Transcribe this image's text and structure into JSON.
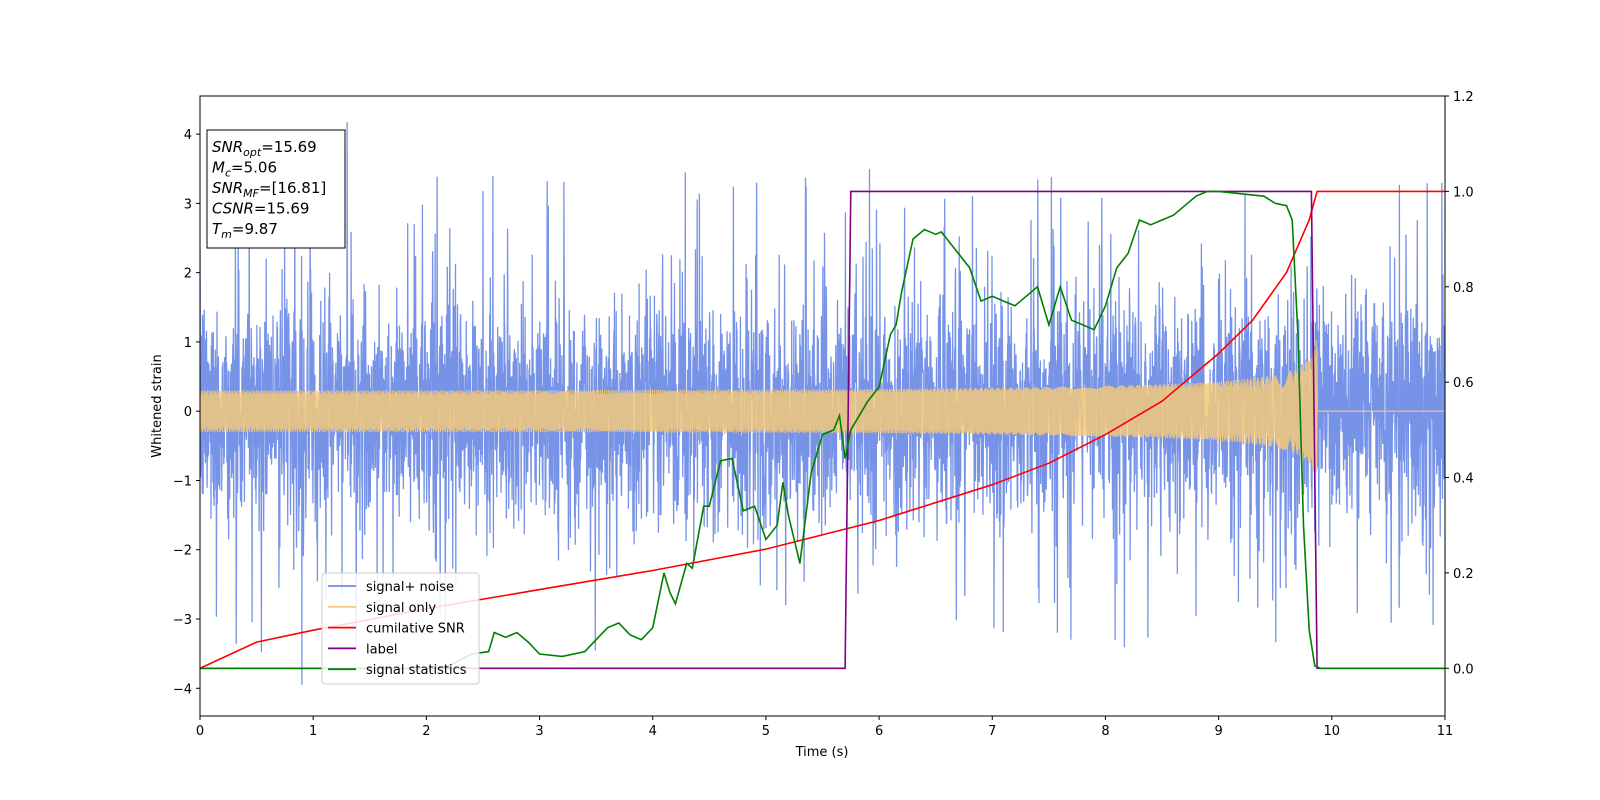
{
  "chart_data": {
    "type": "line",
    "xlabel": "Time (s)",
    "ylabel": "Whitened strain",
    "xlim": [
      0,
      11
    ],
    "ylim": [
      -4.4,
      4.55
    ],
    "y2lim": [
      -0.1,
      1.2
    ],
    "xticks": [
      0,
      1,
      2,
      3,
      4,
      5,
      6,
      7,
      8,
      9,
      10,
      11
    ],
    "yticks": [
      -4,
      -3,
      -2,
      -1,
      0,
      1,
      2,
      3,
      4
    ],
    "y2ticks": [
      "0.0",
      "0.2",
      "0.4",
      "0.6",
      "0.8",
      "1.0",
      "1.2"
    ],
    "grid": false,
    "legend_placement": "lower-left",
    "annotation": {
      "lines": [
        {
          "symbol": "SNR",
          "sub": "opt",
          "value": "=15.69"
        },
        {
          "symbol": "M",
          "sub": "c",
          "value": "=5.06"
        },
        {
          "symbol": "SNR",
          "sub": "MF",
          "value": "=[16.81]"
        },
        {
          "symbol": "CSNR",
          "sub": "",
          "value": "=15.69"
        },
        {
          "symbol": "T",
          "sub": "m",
          "value": "=9.87"
        }
      ]
    },
    "series": [
      {
        "name": "signal+ noise",
        "color": "#6f8de6",
        "axis": "left",
        "kind": "noise",
        "std": 0.85,
        "spike_max": 4.17,
        "spike_min": -3.95,
        "end_x": 11
      },
      {
        "name": "signal only",
        "color": "#f5c97a",
        "axis": "left",
        "kind": "chirp",
        "amplitude_start": 0.07,
        "amplitude_end": 1.1,
        "merger_x": 9.87
      },
      {
        "name": "cumilative SNR",
        "color": "#ff0000",
        "axis": "right",
        "x": [
          0,
          0.5,
          1,
          2,
          3,
          4,
          5,
          6,
          7,
          7.5,
          8,
          8.5,
          9,
          9.3,
          9.6,
          9.8,
          9.87,
          11
        ],
        "y": [
          0.0,
          0.055,
          0.08,
          0.125,
          0.165,
          0.205,
          0.25,
          0.31,
          0.385,
          0.43,
          0.49,
          0.56,
          0.66,
          0.73,
          0.83,
          0.94,
          1.0,
          1.0
        ]
      },
      {
        "name": "label",
        "color": "#800080",
        "axis": "right",
        "x": [
          0,
          5.7,
          5.75,
          9.82,
          9.87,
          11
        ],
        "y": [
          0,
          0,
          1,
          1,
          0,
          0
        ]
      },
      {
        "name": "signal statistics",
        "color": "#008000",
        "axis": "right",
        "x": [
          0,
          2.0,
          2.2,
          2.4,
          2.55,
          2.6,
          2.7,
          2.8,
          2.9,
          3.0,
          3.2,
          3.4,
          3.5,
          3.6,
          3.7,
          3.8,
          3.9,
          4.0,
          4.1,
          4.15,
          4.2,
          4.3,
          4.35,
          4.45,
          4.5,
          4.6,
          4.7,
          4.8,
          4.9,
          5.0,
          5.1,
          5.15,
          5.2,
          5.3,
          5.4,
          5.5,
          5.6,
          5.65,
          5.7,
          5.75,
          5.8,
          5.9,
          6.0,
          6.1,
          6.15,
          6.2,
          6.3,
          6.4,
          6.5,
          6.55,
          6.7,
          6.8,
          6.9,
          7.0,
          7.1,
          7.2,
          7.3,
          7.4,
          7.5,
          7.6,
          7.7,
          7.8,
          7.9,
          8.0,
          8.1,
          8.2,
          8.3,
          8.4,
          8.5,
          8.6,
          8.7,
          8.8,
          8.9,
          9.0,
          9.2,
          9.4,
          9.5,
          9.6,
          9.65,
          9.7,
          9.75,
          9.8,
          9.85,
          9.9,
          10.0,
          11
        ],
        "y": [
          0.0,
          0.0,
          0.005,
          0.03,
          0.035,
          0.075,
          0.065,
          0.075,
          0.055,
          0.03,
          0.025,
          0.035,
          0.06,
          0.085,
          0.095,
          0.07,
          0.06,
          0.085,
          0.2,
          0.16,
          0.135,
          0.22,
          0.21,
          0.34,
          0.34,
          0.435,
          0.44,
          0.33,
          0.34,
          0.27,
          0.3,
          0.39,
          0.32,
          0.22,
          0.41,
          0.49,
          0.5,
          0.53,
          0.44,
          0.5,
          0.52,
          0.56,
          0.59,
          0.7,
          0.72,
          0.79,
          0.9,
          0.92,
          0.91,
          0.915,
          0.87,
          0.84,
          0.77,
          0.78,
          0.77,
          0.76,
          0.78,
          0.8,
          0.72,
          0.8,
          0.73,
          0.72,
          0.71,
          0.76,
          0.84,
          0.87,
          0.94,
          0.93,
          0.94,
          0.95,
          0.97,
          0.99,
          1.0,
          1.0,
          0.995,
          0.99,
          0.975,
          0.97,
          0.94,
          0.7,
          0.3,
          0.08,
          0.005,
          0.0,
          0.0,
          0.0
        ]
      }
    ]
  }
}
